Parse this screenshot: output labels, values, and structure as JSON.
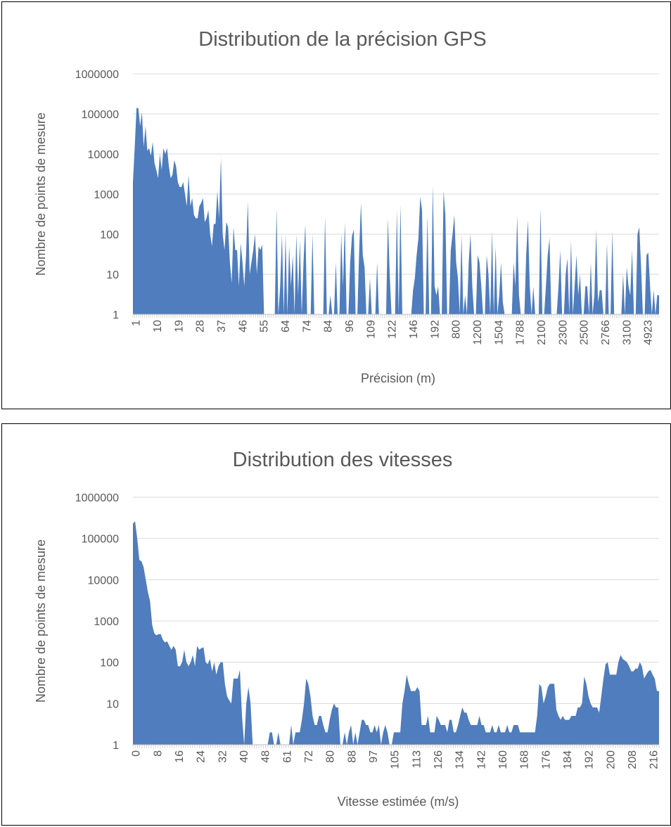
{
  "chart_data": [
    {
      "type": "area",
      "title": "Distribution de la précision GPS",
      "xlabel": "Précision (m)",
      "ylabel": "Nombre de points de mesure",
      "y_scale": "log",
      "ylim": [
        1,
        1000000
      ],
      "y_ticks": [
        "1",
        "10",
        "100",
        "1000",
        "10000",
        "100000",
        "1000000"
      ],
      "x_tick_labels": [
        "1",
        "10",
        "19",
        "28",
        "37",
        "46",
        "55",
        "64",
        "74",
        "84",
        "96",
        "109",
        "122",
        "146",
        "192",
        "800",
        "1200",
        "1504",
        "1788",
        "2100",
        "2300",
        "2500",
        "2766",
        "3100",
        "4923"
      ],
      "grid": true,
      "legend": "none",
      "color": "#4F7DBD",
      "values": [
        2000,
        15000,
        140000,
        140000,
        50000,
        110000,
        15000,
        50000,
        12000,
        14000,
        9000,
        20000,
        6000,
        4000,
        2500,
        10000,
        4000,
        14000,
        10000,
        14000,
        5000,
        2500,
        3000,
        7000,
        5000,
        2000,
        1500,
        1500,
        2000,
        1000,
        500,
        3000,
        500,
        800,
        300,
        250,
        250,
        500,
        600,
        800,
        200,
        250,
        400,
        100,
        50,
        180,
        180,
        1200,
        250,
        8000,
        100,
        40,
        200,
        150,
        20,
        6,
        150,
        40,
        40,
        5,
        60,
        20,
        5,
        30,
        650,
        10,
        20,
        40,
        100,
        10,
        50,
        40,
        55,
        1,
        1,
        1,
        1,
        1,
        1,
        1,
        450,
        1,
        5,
        100,
        1,
        100,
        1,
        50,
        5,
        30,
        1,
        100,
        3,
        70,
        1,
        20,
        180,
        1,
        1,
        1,
        100,
        1,
        1,
        1,
        1,
        1,
        1,
        280,
        1,
        1,
        3,
        1,
        1,
        20,
        1,
        1,
        100,
        5,
        200,
        1,
        1,
        20,
        90,
        130,
        1,
        1,
        40,
        600,
        30,
        15,
        1,
        1,
        8,
        1,
        1,
        1,
        20,
        1,
        1,
        1,
        1,
        1,
        250,
        10,
        1,
        1,
        1,
        400,
        1,
        550,
        1,
        1,
        1,
        1,
        1,
        1,
        4,
        8,
        30,
        80,
        850,
        400,
        1,
        1,
        300,
        1,
        1,
        1650,
        5,
        3,
        5,
        1,
        1,
        1200,
        300,
        1,
        1,
        40,
        100,
        300,
        20,
        8,
        1,
        100,
        1,
        3,
        1,
        20,
        100,
        5,
        1,
        1,
        30,
        20,
        5,
        1,
        1,
        30,
        10,
        1,
        120,
        1,
        50,
        1,
        3,
        20,
        2,
        1,
        1,
        1,
        1,
        1,
        20,
        5,
        300,
        3,
        1,
        1,
        1,
        30,
        220,
        5,
        1,
        5,
        1,
        1,
        1,
        450,
        1,
        1,
        5,
        30,
        80,
        1,
        1,
        1,
        1,
        5,
        40,
        1,
        1,
        10,
        25,
        1,
        70,
        1,
        5,
        30,
        3,
        10,
        1,
        1,
        5,
        5,
        1,
        20,
        1,
        3,
        130,
        2,
        4,
        4,
        1,
        1,
        60,
        1,
        1,
        120,
        1,
        1,
        1,
        1,
        1,
        10,
        1,
        15,
        5,
        3,
        40,
        1,
        1,
        100,
        150,
        15,
        1,
        1,
        30,
        35,
        5,
        1,
        4,
        1,
        3,
        3
      ]
    },
    {
      "type": "area",
      "title": "Distribution des vitesses",
      "xlabel": "Vitesse estimée (m/s)",
      "ylabel": "Nombre de points de mesure",
      "y_scale": "log",
      "ylim": [
        1,
        1000000
      ],
      "y_ticks": [
        "1",
        "10",
        "100",
        "1000",
        "10000",
        "100000",
        "1000000"
      ],
      "x_tick_labels": [
        "0",
        "8",
        "16",
        "24",
        "32",
        "40",
        "48",
        "61",
        "72",
        "80",
        "88",
        "97",
        "105",
        "113",
        "126",
        "134",
        "142",
        "160",
        "168",
        "176",
        "184",
        "192",
        "200",
        "208",
        "216"
      ],
      "grid": true,
      "legend": "none",
      "color": "#4F7DBD",
      "values": [
        230000,
        260000,
        100000,
        30000,
        28000,
        20000,
        10000,
        5000,
        3000,
        800,
        500,
        450,
        480,
        480,
        350,
        300,
        320,
        250,
        200,
        250,
        200,
        80,
        80,
        100,
        200,
        100,
        80,
        100,
        150,
        80,
        250,
        200,
        220,
        230,
        100,
        90,
        120,
        60,
        100,
        50,
        80,
        100,
        100,
        30,
        15,
        12,
        10,
        40,
        40,
        40,
        65,
        5,
        1,
        10,
        25,
        10,
        1,
        1,
        1,
        1,
        1,
        1,
        1,
        1,
        2,
        2,
        1,
        1,
        2,
        1,
        1,
        1,
        1,
        1,
        3,
        1,
        2,
        2,
        2,
        4,
        10,
        40,
        30,
        15,
        5,
        3,
        3,
        5,
        5,
        3,
        2,
        2,
        4,
        7,
        10,
        8,
        8,
        1,
        1,
        2,
        1,
        2,
        3,
        1,
        2,
        1,
        2,
        4,
        4,
        3,
        3,
        2,
        2,
        3,
        2,
        3,
        1,
        2,
        3,
        2,
        1,
        1,
        2,
        2,
        2,
        2,
        10,
        20,
        50,
        30,
        20,
        20,
        20,
        25,
        20,
        3,
        3,
        3,
        5,
        2,
        2,
        2,
        5,
        4,
        3,
        3,
        3,
        2,
        4,
        4,
        2,
        2,
        3,
        5,
        8,
        6,
        6,
        4,
        3,
        3,
        3,
        3,
        5,
        3,
        3,
        2,
        2,
        2,
        3,
        2,
        2,
        3,
        2,
        2,
        2,
        3,
        2,
        2,
        3,
        3,
        3,
        2,
        2,
        2,
        2,
        2,
        2,
        2,
        2,
        5,
        30,
        25,
        10,
        15,
        25,
        30,
        30,
        30,
        7,
        5,
        4,
        5,
        4,
        4,
        4,
        5,
        5,
        5,
        8,
        8,
        10,
        45,
        30,
        15,
        10,
        8,
        8,
        8,
        6,
        15,
        40,
        90,
        100,
        50,
        50,
        50,
        50,
        100,
        150,
        120,
        110,
        100,
        80,
        60,
        60,
        70,
        70,
        100,
        80,
        40,
        50,
        60,
        65,
        50,
        40,
        20,
        20
      ]
    }
  ]
}
